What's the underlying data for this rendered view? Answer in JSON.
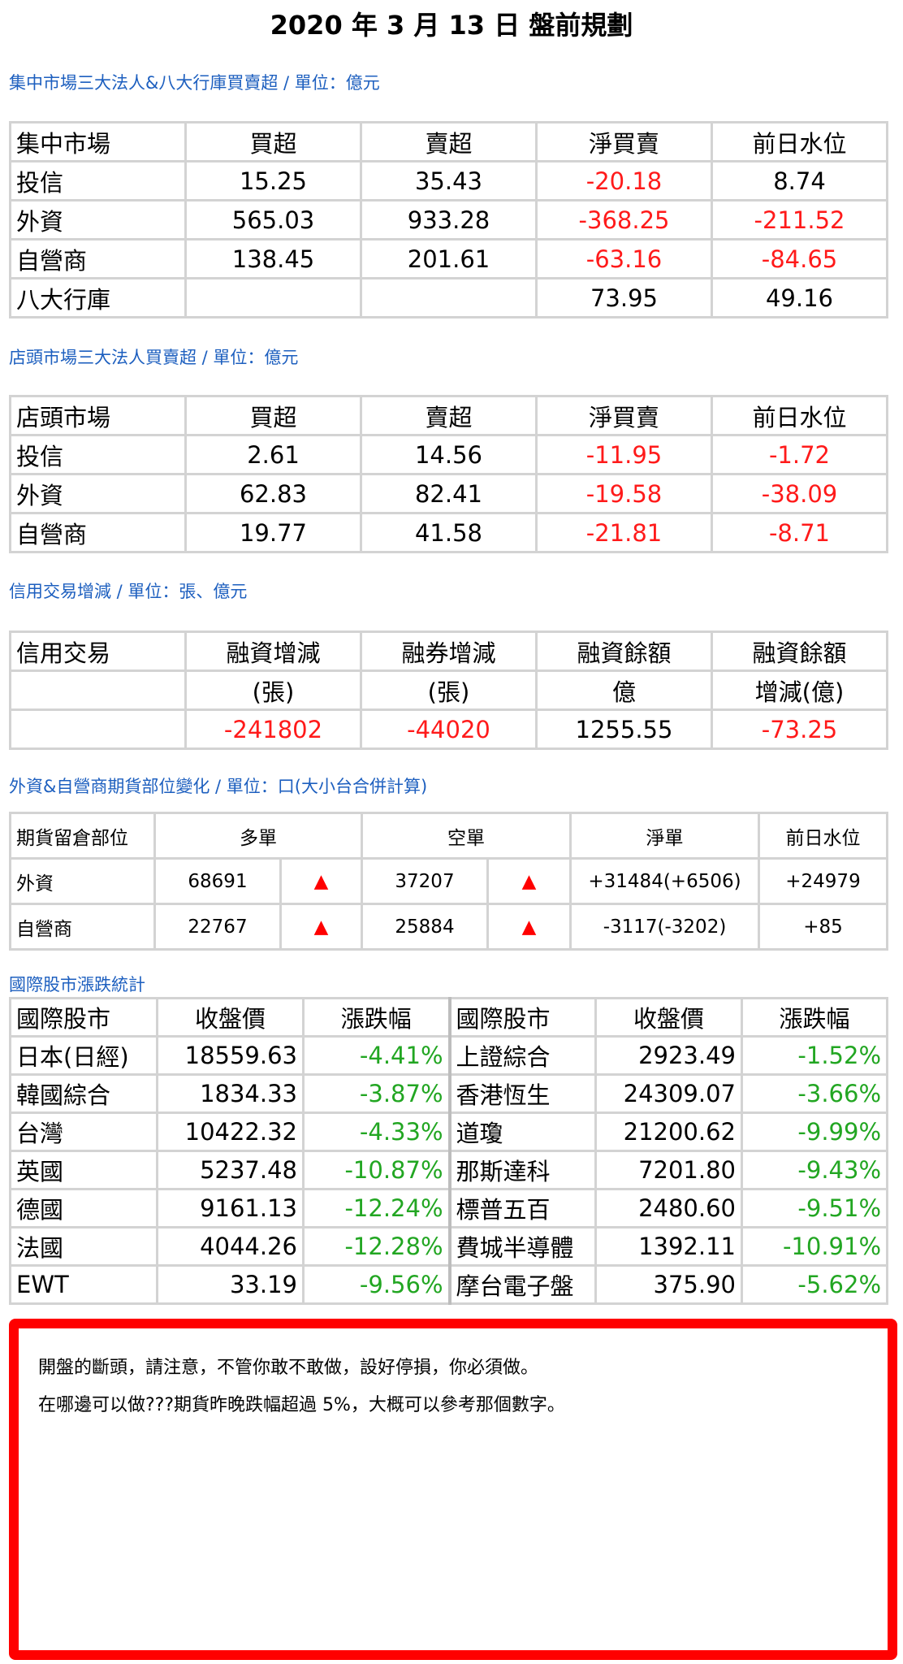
{
  "title": "2020 年 3 月 13 日  盤前規劃",
  "listed": {
    "label": "集中市場三大法人&八大行庫買賣超 / 單位：億元",
    "headers": [
      "集中市場",
      "買超",
      "賣超",
      "淨買賣",
      "前日水位"
    ],
    "rows": [
      {
        "name": "投信",
        "buy": "15.25",
        "sell": "35.43",
        "net": "-20.18",
        "prev": "8.74"
      },
      {
        "name": "外資",
        "buy": "565.03",
        "sell": "933.28",
        "net": "-368.25",
        "prev": "-211.52"
      },
      {
        "name": "自營商",
        "buy": "138.45",
        "sell": "201.61",
        "net": "-63.16",
        "prev": "-84.65"
      },
      {
        "name": "八大行庫",
        "buy": "",
        "sell": "",
        "net": "73.95",
        "prev": "49.16"
      }
    ]
  },
  "otc": {
    "label": "店頭市場三大法人買賣超 / 單位：億元",
    "headers": [
      "店頭市場",
      "買超",
      "賣超",
      "淨買賣",
      "前日水位"
    ],
    "rows": [
      {
        "name": "投信",
        "buy": "2.61",
        "sell": "14.56",
        "net": "-11.95",
        "prev": "-1.72"
      },
      {
        "name": "外資",
        "buy": "62.83",
        "sell": "82.41",
        "net": "-19.58",
        "prev": "-38.09"
      },
      {
        "name": "自營商",
        "buy": "19.77",
        "sell": "41.58",
        "net": "-21.81",
        "prev": "-8.71"
      }
    ]
  },
  "margin": {
    "label": "信用交易增減 / 單位：張、億元",
    "headers": [
      "信用交易",
      "融資增減",
      "融券增減",
      "融資餘額",
      "融資餘額"
    ],
    "subheaders": [
      "",
      "(張)",
      "(張)",
      "億",
      "增減(億)"
    ],
    "values": [
      "",
      "-241802",
      "-44020",
      "1255.55",
      "-73.25"
    ]
  },
  "futures": {
    "label": "外資&自營商期貨部位變化 / 單位：口(大小台合併計算)",
    "headers": [
      "期貨留倉部位",
      "多單",
      "空單",
      "淨單",
      "前日水位"
    ],
    "trend_symbol": "▲",
    "rows": [
      {
        "name": "外資",
        "long": "68691",
        "short": "37207",
        "net": "+31484(+6506)",
        "prev": "+24979"
      },
      {
        "name": "自營商",
        "long": "22767",
        "short": "25884",
        "net": "-3117(-3202)",
        "prev": "+85"
      }
    ]
  },
  "intl": {
    "label": "國際股市漲跌統計",
    "headers": [
      "國際股市",
      "收盤價",
      "漲跌幅",
      "國際股市",
      "收盤價",
      "漲跌幅"
    ],
    "rows": [
      {
        "n1": "日本(日經)",
        "p1": "18559.63",
        "c1": "-4.41%",
        "n2": "上證綜合",
        "p2": "2923.49",
        "c2": "-1.52%"
      },
      {
        "n1": "韓國綜合",
        "p1": "1834.33",
        "c1": "-3.87%",
        "n2": "香港恆生",
        "p2": "24309.07",
        "c2": "-3.66%"
      },
      {
        "n1": "台灣",
        "p1": "10422.32",
        "c1": "-4.33%",
        "n2": "道瓊",
        "p2": "21200.62",
        "c2": "-9.99%"
      },
      {
        "n1": "英國",
        "p1": "5237.48",
        "c1": "-10.87%",
        "n2": "那斯達科",
        "p2": "7201.80",
        "c2": "-9.43%"
      },
      {
        "n1": "德國",
        "p1": "9161.13",
        "c1": "-12.24%",
        "n2": "標普五百",
        "p2": "2480.60",
        "c2": "-9.51%"
      },
      {
        "n1": "法國",
        "p1": "4044.26",
        "c1": "-12.28%",
        "n2": "費城半導體",
        "p2": "1392.11",
        "c2": "-10.91%"
      },
      {
        "n1": "EWT",
        "p1": "33.19",
        "c1": "-9.56%",
        "n2": "摩台電子盤",
        "p2": "375.90",
        "c2": "-5.62%"
      }
    ]
  },
  "note": {
    "lines": [
      "開盤的斷頭，請注意，不管你敢不敢做，設好停損，你必須做。",
      "在哪邊可以做???期貨昨晚跌幅超過 5%，大概可以參考那個數字。"
    ]
  },
  "colors": {
    "negative": "#ff1a1a",
    "positive_change": "#22a622",
    "label_blue": "#1d5fbf",
    "highlight_border": "#ff0000"
  }
}
